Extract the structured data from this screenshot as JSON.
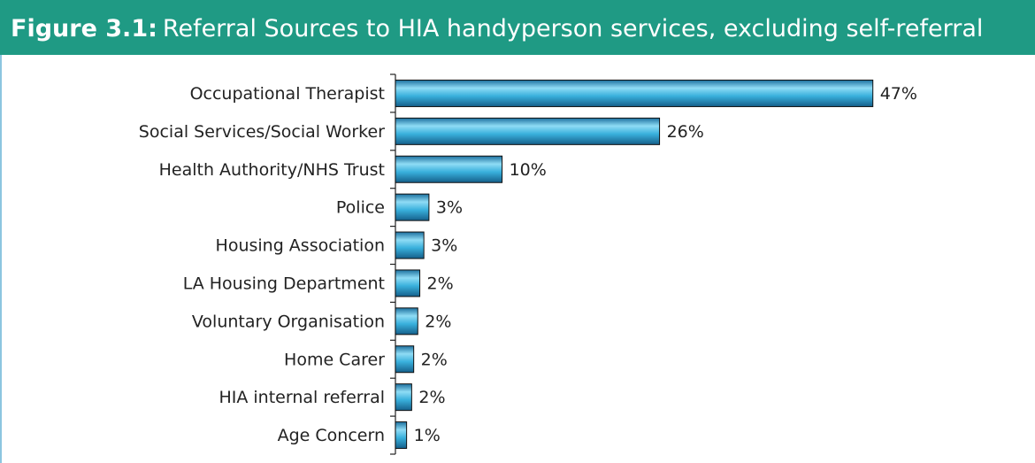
{
  "chart_data": {
    "type": "bar",
    "orientation": "horizontal",
    "figure_label": "Figure 3.1:",
    "title": "Referral Sources to HIA handyperson services, excluding self-referral",
    "categories": [
      "Occupational Therapist",
      "Social Services/Social Worker",
      "Health Authority/NHS Trust",
      "Police",
      "Housing Association",
      "LA Housing Department",
      "Voluntary Organisation",
      "Home Carer",
      "HIA internal referral",
      "Age Concern"
    ],
    "values": [
      47,
      26,
      10.5,
      3.3,
      2.8,
      2.4,
      2.2,
      1.8,
      1.6,
      1.1
    ],
    "value_labels": [
      "47%",
      "26%",
      "10%",
      "3%",
      "3%",
      "2%",
      "2%",
      "2%",
      "2%",
      "1%"
    ],
    "color": "#2a9fd0",
    "xlim": [
      0,
      60
    ]
  }
}
